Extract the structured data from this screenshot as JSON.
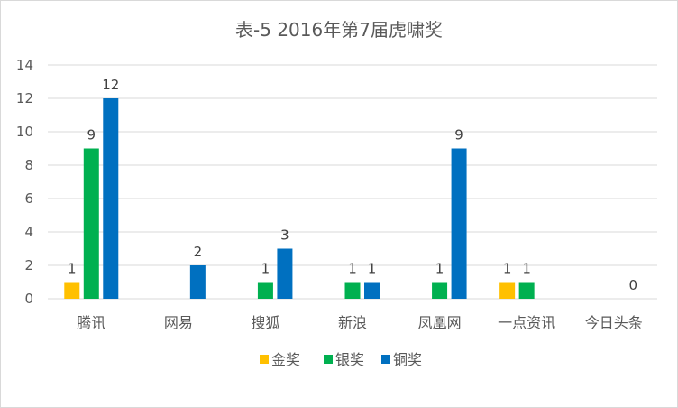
{
  "chart_data": {
    "type": "bar",
    "title": "表-5 2016年第7届虎啸奖",
    "categories": [
      "腾讯",
      "网易",
      "搜狐",
      "新浪",
      "凤凰网",
      "一点资讯",
      "今日头条"
    ],
    "series": [
      {
        "name": "金奖",
        "color": "#FFC000",
        "values": [
          1,
          0,
          0,
          0,
          0,
          1,
          0
        ],
        "labels": [
          "1",
          "",
          "",
          "",
          "",
          "1",
          ""
        ]
      },
      {
        "name": "银奖",
        "color": "#00B050",
        "values": [
          9,
          0,
          1,
          1,
          1,
          1,
          0
        ],
        "labels": [
          "9",
          "",
          "1",
          "1",
          "1",
          "1",
          ""
        ]
      },
      {
        "name": "铜奖",
        "color": "#0070C0",
        "values": [
          12,
          2,
          3,
          1,
          9,
          0,
          0
        ],
        "labels": [
          "12",
          "2",
          "3",
          "1",
          "9",
          "",
          "0"
        ]
      }
    ],
    "ylim": [
      0,
      14
    ],
    "yticks": [
      "0",
      "2",
      "4",
      "6",
      "8",
      "10",
      "12",
      "14"
    ],
    "grid": true,
    "legend_position": "bottom"
  }
}
